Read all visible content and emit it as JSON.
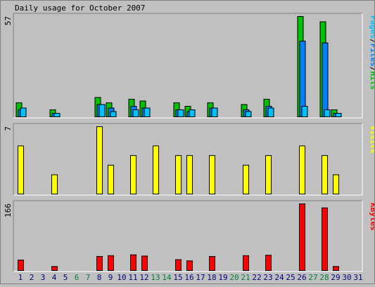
{
  "title": "Daily usage for October 2007",
  "chart_data": [
    {
      "type": "bar",
      "panel": "hits",
      "ylabel_parts": [
        {
          "text": "Pages",
          "color": "#00c0ff"
        },
        {
          "text": "/",
          "color": "#000000"
        },
        {
          "text": "Files",
          "color": "#0080ff"
        },
        {
          "text": "/",
          "color": "#000000"
        },
        {
          "text": "Hits",
          "color": "#00c000"
        }
      ],
      "y_max_label": "57",
      "ylim": [
        0,
        57
      ],
      "categories": [
        "1",
        "2",
        "3",
        "4",
        "5",
        "6",
        "7",
        "8",
        "9",
        "10",
        "11",
        "12",
        "13",
        "14",
        "15",
        "16",
        "17",
        "18",
        "19",
        "20",
        "21",
        "22",
        "23",
        "24",
        "25",
        "26",
        "27",
        "28",
        "29",
        "30",
        "31"
      ],
      "series": [
        {
          "name": "Hits",
          "color": "#00c000",
          "values": [
            8,
            0,
            0,
            4,
            0,
            0,
            0,
            11,
            8,
            0,
            10,
            9,
            0,
            0,
            8,
            6,
            0,
            8,
            0,
            0,
            7,
            0,
            10,
            0,
            0,
            57,
            0,
            54,
            4,
            0,
            0
          ]
        },
        {
          "name": "Files",
          "color": "#0080ff",
          "values": [
            4,
            0,
            0,
            2,
            0,
            0,
            0,
            7,
            5,
            0,
            6,
            5,
            0,
            0,
            4,
            3,
            0,
            5,
            0,
            0,
            4,
            0,
            6,
            0,
            0,
            43,
            0,
            42,
            2,
            0,
            0
          ]
        },
        {
          "name": "Pages",
          "color": "#00c0ff",
          "values": [
            5,
            0,
            0,
            2,
            0,
            0,
            0,
            7,
            3,
            0,
            4,
            5,
            0,
            0,
            4,
            4,
            0,
            5,
            0,
            0,
            3,
            0,
            5,
            0,
            0,
            6,
            0,
            4,
            2,
            0,
            0
          ]
        }
      ]
    },
    {
      "type": "bar",
      "panel": "visits",
      "ylabel_parts": [
        {
          "text": "Visits",
          "color": "#ffff00"
        }
      ],
      "y_max_label": "7",
      "ylim": [
        0,
        7
      ],
      "categories": [
        "1",
        "2",
        "3",
        "4",
        "5",
        "6",
        "7",
        "8",
        "9",
        "10",
        "11",
        "12",
        "13",
        "14",
        "15",
        "16",
        "17",
        "18",
        "19",
        "20",
        "21",
        "22",
        "23",
        "24",
        "25",
        "26",
        "27",
        "28",
        "29",
        "30",
        "31"
      ],
      "series": [
        {
          "name": "Visits",
          "color": "#ffff00",
          "values": [
            5,
            0,
            0,
            2,
            0,
            0,
            0,
            7,
            3,
            0,
            4,
            0,
            5,
            0,
            4,
            4,
            0,
            4,
            0,
            0,
            3,
            0,
            4,
            0,
            0,
            5,
            0,
            4,
            2,
            0,
            0
          ]
        }
      ]
    },
    {
      "type": "bar",
      "panel": "kbytes",
      "ylabel_parts": [
        {
          "text": "KBytes",
          "color": "#ff0000"
        }
      ],
      "y_max_label": "166",
      "ylim": [
        0,
        166
      ],
      "categories": [
        "1",
        "2",
        "3",
        "4",
        "5",
        "6",
        "7",
        "8",
        "9",
        "10",
        "11",
        "12",
        "13",
        "14",
        "15",
        "16",
        "17",
        "18",
        "19",
        "20",
        "21",
        "22",
        "23",
        "24",
        "25",
        "26",
        "27",
        "28",
        "29",
        "30",
        "31"
      ],
      "series": [
        {
          "name": "KBytes",
          "color": "#ff0000",
          "values": [
            26,
            0,
            0,
            10,
            0,
            0,
            0,
            35,
            37,
            0,
            39,
            36,
            0,
            0,
            27,
            24,
            0,
            35,
            0,
            0,
            37,
            0,
            38,
            0,
            0,
            166,
            0,
            156,
            10,
            0,
            0
          ]
        }
      ]
    }
  ],
  "x_labels": [
    {
      "text": "1",
      "color": "#000080"
    },
    {
      "text": "2",
      "color": "#000080"
    },
    {
      "text": "3",
      "color": "#000080"
    },
    {
      "text": "4",
      "color": "#000080"
    },
    {
      "text": "5",
      "color": "#000080"
    },
    {
      "text": "6",
      "color": "#008040"
    },
    {
      "text": "7",
      "color": "#008040"
    },
    {
      "text": "8",
      "color": "#000080"
    },
    {
      "text": "9",
      "color": "#000080"
    },
    {
      "text": "10",
      "color": "#000080"
    },
    {
      "text": "11",
      "color": "#000080"
    },
    {
      "text": "12",
      "color": "#000080"
    },
    {
      "text": "13",
      "color": "#008040"
    },
    {
      "text": "14",
      "color": "#008040"
    },
    {
      "text": "15",
      "color": "#000080"
    },
    {
      "text": "16",
      "color": "#000080"
    },
    {
      "text": "17",
      "color": "#000080"
    },
    {
      "text": "18",
      "color": "#000080"
    },
    {
      "text": "19",
      "color": "#000080"
    },
    {
      "text": "20",
      "color": "#008040"
    },
    {
      "text": "21",
      "color": "#008040"
    },
    {
      "text": "22",
      "color": "#000080"
    },
    {
      "text": "23",
      "color": "#000080"
    },
    {
      "text": "24",
      "color": "#000080"
    },
    {
      "text": "25",
      "color": "#000080"
    },
    {
      "text": "26",
      "color": "#000080"
    },
    {
      "text": "27",
      "color": "#008040"
    },
    {
      "text": "28",
      "color": "#008040"
    },
    {
      "text": "29",
      "color": "#000080"
    },
    {
      "text": "30",
      "color": "#000080"
    },
    {
      "text": "31",
      "color": "#000080"
    }
  ]
}
